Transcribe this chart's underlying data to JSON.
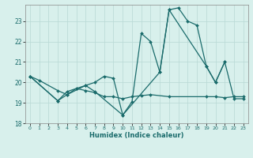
{
  "xlabel": "Humidex (Indice chaleur)",
  "bg_color": "#d8f0ec",
  "line_color": "#1a6b6b",
  "grid_color": "#b8d8d4",
  "xlim": [
    -0.5,
    23.5
  ],
  "ylim": [
    18.0,
    23.8
  ],
  "yticks": [
    18,
    19,
    20,
    21,
    22,
    23
  ],
  "xticks": [
    0,
    1,
    2,
    3,
    4,
    5,
    6,
    7,
    8,
    9,
    10,
    11,
    12,
    13,
    14,
    15,
    16,
    17,
    18,
    19,
    20,
    21,
    22,
    23
  ],
  "line1_x": [
    0,
    1,
    3,
    4,
    5,
    6,
    7,
    8,
    9,
    10,
    11,
    12,
    13,
    15,
    19,
    20,
    21,
    22,
    23
  ],
  "line1_y": [
    20.3,
    20.1,
    19.6,
    19.4,
    19.7,
    19.6,
    19.5,
    19.3,
    19.3,
    19.2,
    19.3,
    19.35,
    19.4,
    19.3,
    19.3,
    19.3,
    19.25,
    19.3,
    19.3
  ],
  "line2_x": [
    0,
    3,
    4,
    5,
    6,
    7,
    8,
    9,
    10,
    11,
    12,
    13,
    14,
    15,
    16,
    17,
    18,
    19,
    20,
    21
  ],
  "line2_y": [
    20.3,
    19.1,
    19.55,
    19.7,
    19.85,
    20.0,
    20.3,
    20.2,
    18.4,
    19.05,
    22.4,
    22.0,
    20.5,
    23.55,
    23.65,
    23.0,
    22.8,
    20.8,
    20.0,
    21.0
  ],
  "line3_x": [
    0,
    3,
    4,
    6,
    7,
    10,
    14,
    15,
    19,
    20,
    21,
    22,
    23
  ],
  "line3_y": [
    20.3,
    19.1,
    19.4,
    19.85,
    19.55,
    18.4,
    20.5,
    23.55,
    20.8,
    20.0,
    21.0,
    19.2,
    19.2
  ]
}
